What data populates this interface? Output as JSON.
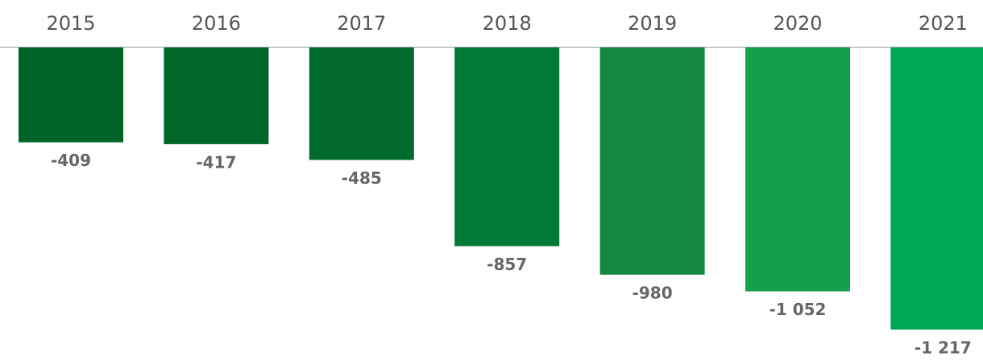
{
  "chart_data": {
    "type": "bar",
    "categories": [
      "2015",
      "2016",
      "2017",
      "2018",
      "2019",
      "2020",
      "2021"
    ],
    "values": [
      -409,
      -417,
      -485,
      -857,
      -980,
      -1052,
      -1217
    ],
    "value_labels": [
      "-409",
      "-417",
      "-485",
      "-857",
      "-980",
      "-1 052",
      "-1 217"
    ],
    "colors": [
      "#006428",
      "#006729",
      "#006b2d",
      "#007a36",
      "#138a40",
      "#16a04b",
      "#00a957"
    ]
  }
}
